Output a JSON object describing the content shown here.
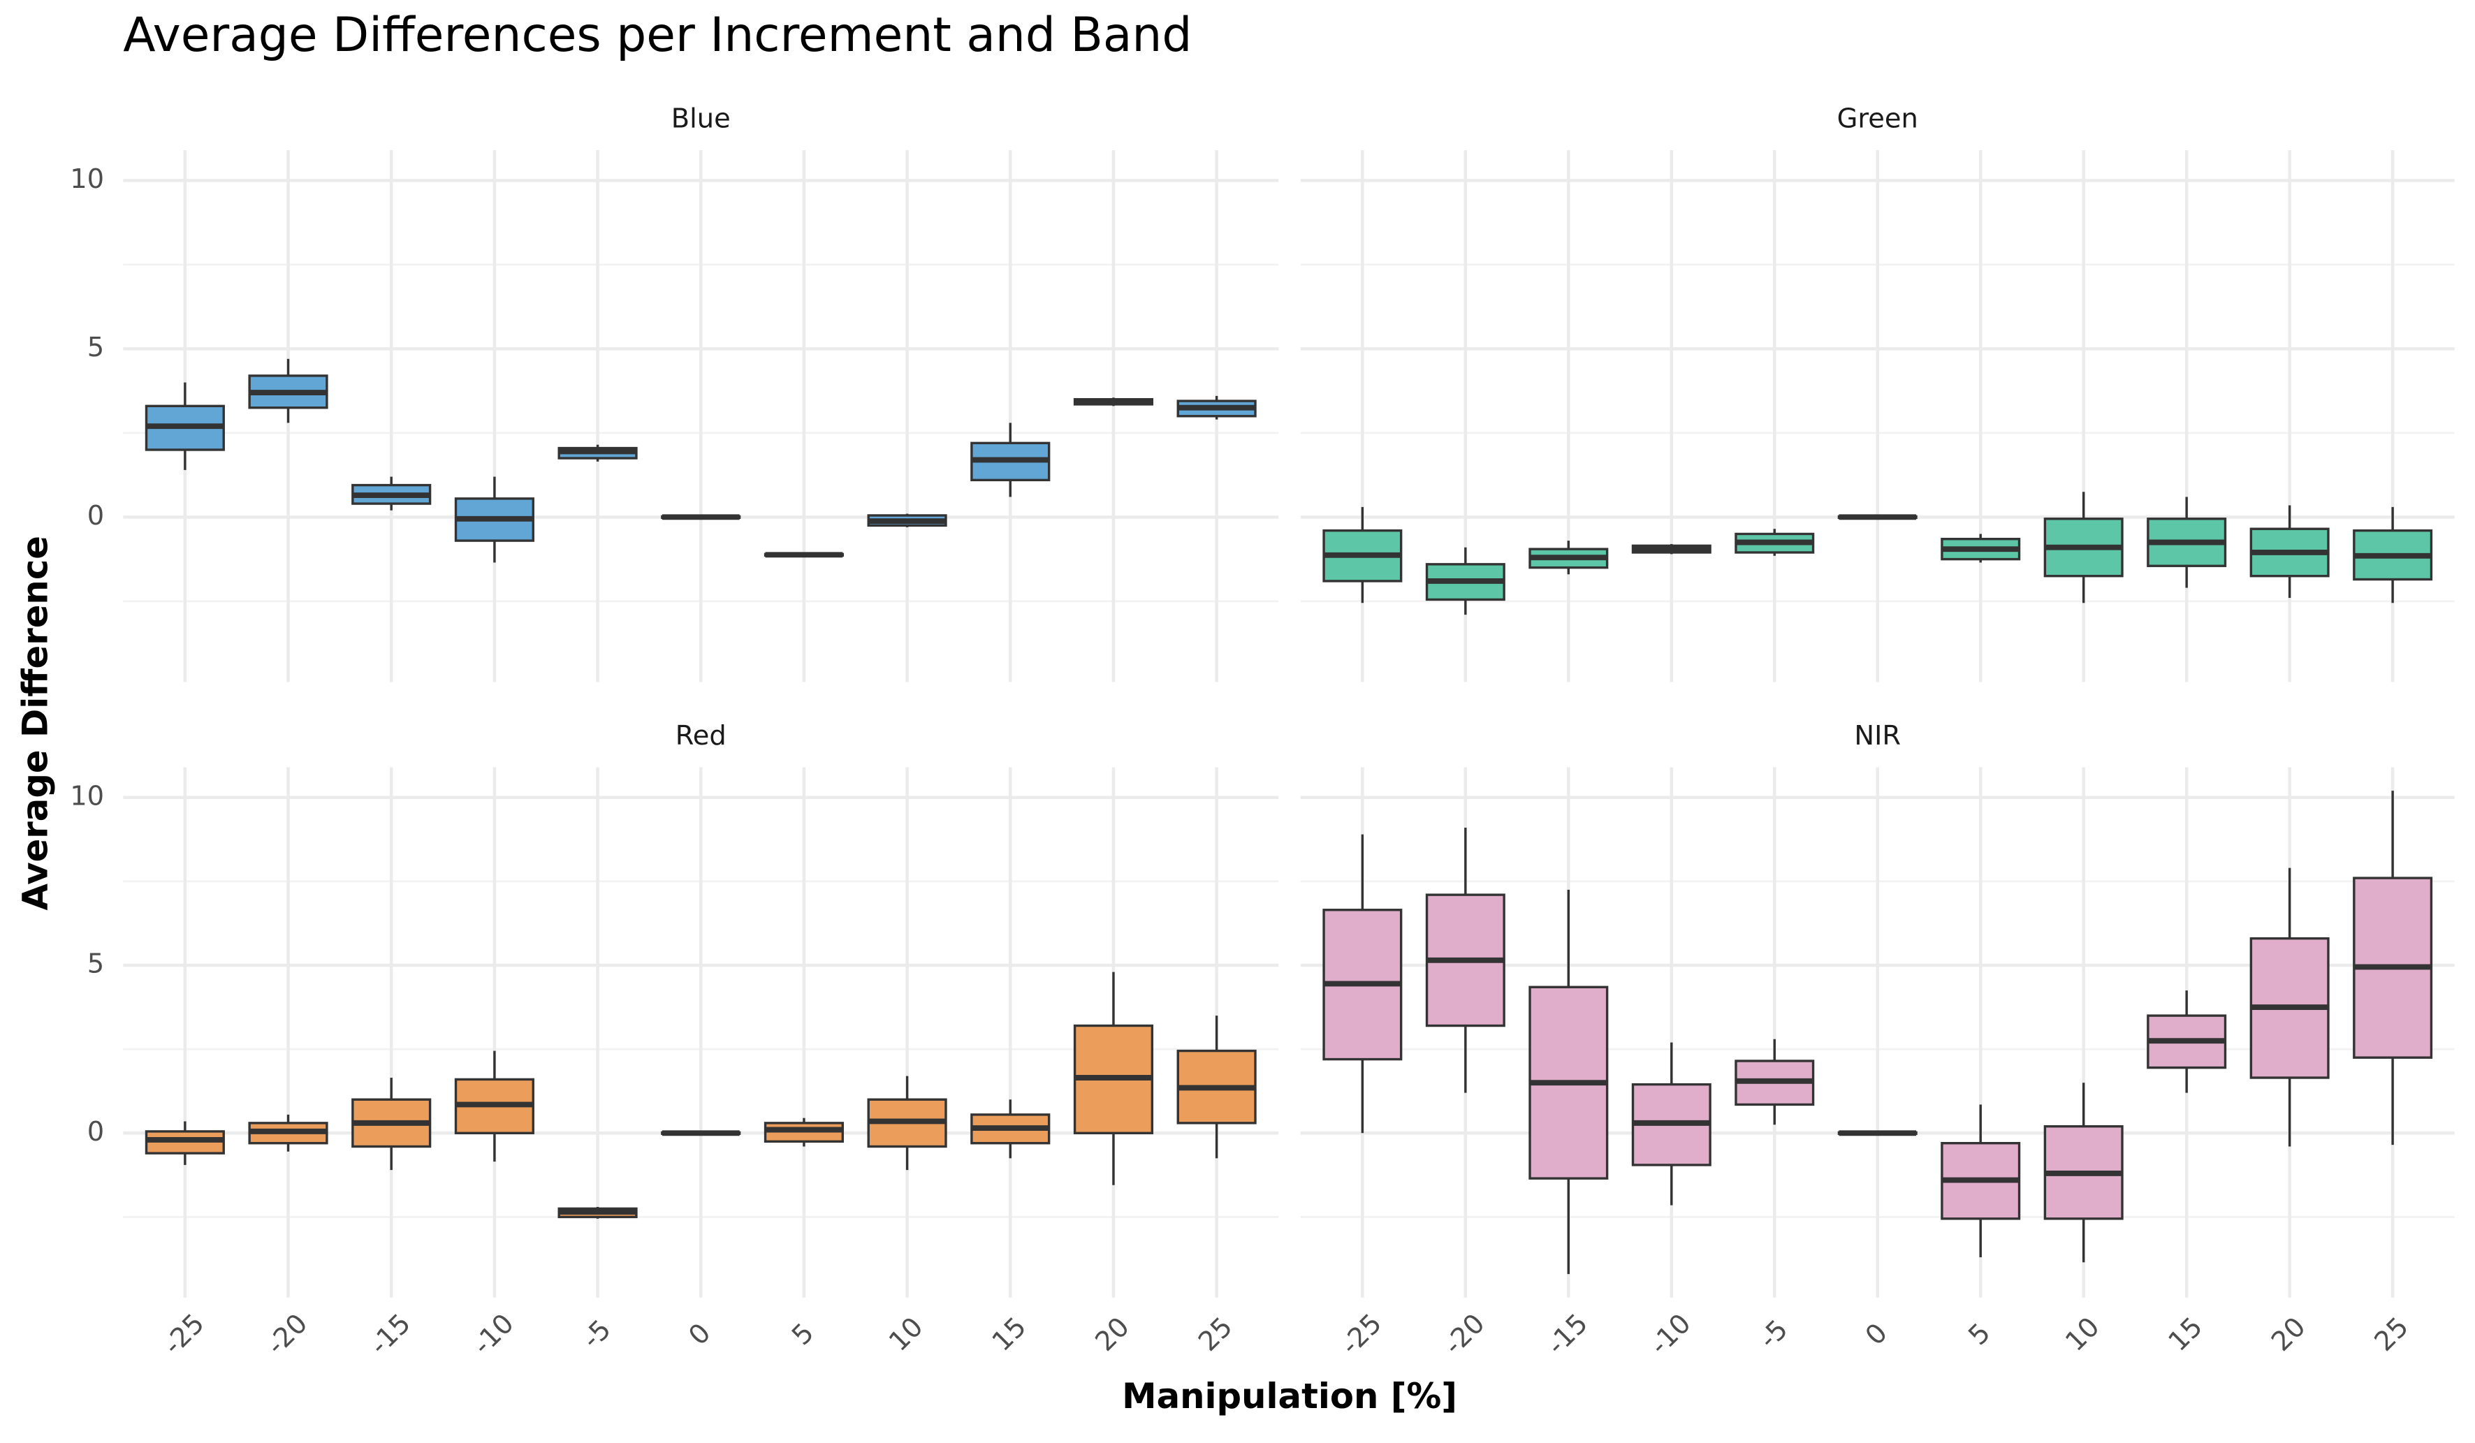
{
  "title": "Average Differences per Increment and Band",
  "x_label": "Manipulation [%]",
  "y_label": "Average Difference",
  "chart_data": [
    {
      "type": "box",
      "title": "Blue",
      "color": "#62a6d6",
      "categories": [
        -25,
        -20,
        -15,
        -10,
        -5,
        0,
        5,
        10,
        15,
        20,
        25
      ],
      "boxes": [
        {
          "min": 1.4,
          "q1": 2.0,
          "median": 2.7,
          "q3": 3.3,
          "max": 4.0
        },
        {
          "min": 2.8,
          "q1": 3.25,
          "median": 3.7,
          "q3": 4.2,
          "max": 4.7
        },
        {
          "min": 0.2,
          "q1": 0.4,
          "median": 0.65,
          "q3": 0.95,
          "max": 1.2
        },
        {
          "min": -1.35,
          "q1": -0.7,
          "median": -0.05,
          "q3": 0.55,
          "max": 1.2
        },
        {
          "min": 1.65,
          "q1": 1.75,
          "median": 1.95,
          "q3": 2.05,
          "max": 2.15
        },
        {
          "min": -0.03,
          "q1": -0.02,
          "median": 0,
          "q3": 0.02,
          "max": 0.03
        },
        {
          "min": -1.15,
          "q1": -1.14,
          "median": -1.12,
          "q3": -1.1,
          "max": -1.08
        },
        {
          "min": -0.3,
          "q1": -0.25,
          "median": -0.12,
          "q3": 0.05,
          "max": 0.1
        },
        {
          "min": 0.6,
          "q1": 1.1,
          "median": 1.7,
          "q3": 2.2,
          "max": 2.8
        },
        {
          "min": 3.3,
          "q1": 3.35,
          "median": 3.45,
          "q3": 3.5,
          "max": 3.55
        },
        {
          "min": 2.9,
          "q1": 3.0,
          "median": 3.25,
          "q3": 3.45,
          "max": 3.6
        }
      ],
      "ylim": [
        -4.9,
        10.9
      ],
      "yticks": [
        0,
        5,
        10
      ],
      "minor_yticks": [
        -2.5,
        2.5,
        7.5
      ],
      "grid": true,
      "show_x_labels": false,
      "show_y_labels": true
    },
    {
      "type": "box",
      "title": "Green",
      "color": "#5cc6a6",
      "categories": [
        -25,
        -20,
        -15,
        -10,
        -5,
        0,
        5,
        10,
        15,
        20,
        25
      ],
      "boxes": [
        {
          "min": -2.55,
          "q1": -1.9,
          "median": -1.13,
          "q3": -0.4,
          "max": 0.3
        },
        {
          "min": -2.9,
          "q1": -2.45,
          "median": -1.9,
          "q3": -1.4,
          "max": -0.9
        },
        {
          "min": -1.7,
          "q1": -1.5,
          "median": -1.2,
          "q3": -0.95,
          "max": -0.7
        },
        {
          "min": -1.1,
          "q1": -1.05,
          "median": -0.95,
          "q3": -0.85,
          "max": -0.8
        },
        {
          "min": -1.15,
          "q1": -1.05,
          "median": -0.75,
          "q3": -0.5,
          "max": -0.35
        },
        {
          "min": -0.03,
          "q1": -0.02,
          "median": 0,
          "q3": 0.02,
          "max": 0.03
        },
        {
          "min": -1.35,
          "q1": -1.25,
          "median": -0.95,
          "q3": -0.65,
          "max": -0.5
        },
        {
          "min": -2.55,
          "q1": -1.75,
          "median": -0.9,
          "q3": -0.05,
          "max": 0.75
        },
        {
          "min": -2.1,
          "q1": -1.45,
          "median": -0.75,
          "q3": -0.05,
          "max": 0.6
        },
        {
          "min": -2.4,
          "q1": -1.75,
          "median": -1.05,
          "q3": -0.35,
          "max": 0.35
        },
        {
          "min": -2.55,
          "q1": -1.85,
          "median": -1.15,
          "q3": -0.4,
          "max": 0.3
        }
      ],
      "ylim": [
        -4.9,
        10.9
      ],
      "yticks": [
        0,
        5,
        10
      ],
      "minor_yticks": [
        -2.5,
        2.5,
        7.5
      ],
      "grid": true,
      "show_x_labels": false,
      "show_y_labels": false
    },
    {
      "type": "box",
      "title": "Red",
      "color": "#eb9d5c",
      "categories": [
        -25,
        -20,
        -15,
        -10,
        -5,
        0,
        5,
        10,
        15,
        20,
        25
      ],
      "boxes": [
        {
          "min": -0.95,
          "q1": -0.6,
          "median": -0.2,
          "q3": 0.05,
          "max": 0.35
        },
        {
          "min": -0.55,
          "q1": -0.3,
          "median": 0.05,
          "q3": 0.3,
          "max": 0.55
        },
        {
          "min": -1.1,
          "q1": -0.4,
          "median": 0.3,
          "q3": 1.0,
          "max": 1.65
        },
        {
          "min": -0.85,
          "q1": 0,
          "median": 0.85,
          "q3": 1.6,
          "max": 2.45
        },
        {
          "min": -2.55,
          "q1": -2.5,
          "median": -2.35,
          "q3": -2.25,
          "max": -2.2
        },
        {
          "min": -0.03,
          "q1": -0.02,
          "median": 0,
          "q3": 0.02,
          "max": 0.03
        },
        {
          "min": -0.4,
          "q1": -0.25,
          "median": 0.1,
          "q3": 0.3,
          "max": 0.45
        },
        {
          "min": -1.1,
          "q1": -0.4,
          "median": 0.35,
          "q3": 1.0,
          "max": 1.7
        },
        {
          "min": -0.75,
          "q1": -0.3,
          "median": 0.15,
          "q3": 0.55,
          "max": 1.0
        },
        {
          "min": -1.55,
          "q1": 0,
          "median": 1.65,
          "q3": 3.2,
          "max": 4.8
        },
        {
          "min": -0.75,
          "q1": 0.3,
          "median": 1.35,
          "q3": 2.45,
          "max": 3.5
        }
      ],
      "ylim": [
        -4.9,
        10.9
      ],
      "yticks": [
        0,
        5,
        10
      ],
      "minor_yticks": [
        -2.5,
        2.5,
        7.5
      ],
      "grid": true,
      "show_x_labels": true,
      "show_y_labels": true
    },
    {
      "type": "box",
      "title": "NIR",
      "color": "#e0aecb",
      "categories": [
        -25,
        -20,
        -15,
        -10,
        -5,
        0,
        5,
        10,
        15,
        20,
        25
      ],
      "boxes": [
        {
          "min": 0,
          "q1": 2.2,
          "median": 4.45,
          "q3": 6.65,
          "max": 8.9
        },
        {
          "min": 1.2,
          "q1": 3.2,
          "median": 5.15,
          "q3": 7.1,
          "max": 9.1
        },
        {
          "min": -4.2,
          "q1": -1.35,
          "median": 1.5,
          "q3": 4.35,
          "max": 7.25
        },
        {
          "min": -2.15,
          "q1": -0.95,
          "median": 0.3,
          "q3": 1.45,
          "max": 2.7
        },
        {
          "min": 0.25,
          "q1": 0.85,
          "median": 1.55,
          "q3": 2.15,
          "max": 2.8
        },
        {
          "min": -0.03,
          "q1": -0.02,
          "median": 0,
          "q3": 0.02,
          "max": 0.03
        },
        {
          "min": -3.7,
          "q1": -2.55,
          "median": -1.4,
          "q3": -0.3,
          "max": 0.85
        },
        {
          "min": -3.85,
          "q1": -2.55,
          "median": -1.2,
          "q3": 0.2,
          "max": 1.5
        },
        {
          "min": 1.2,
          "q1": 1.95,
          "median": 2.75,
          "q3": 3.5,
          "max": 4.25
        },
        {
          "min": -0.4,
          "q1": 1.65,
          "median": 3.75,
          "q3": 5.8,
          "max": 7.9
        },
        {
          "min": -0.35,
          "q1": 2.25,
          "median": 4.95,
          "q3": 7.6,
          "max": 10.2
        }
      ],
      "ylim": [
        -4.9,
        10.9
      ],
      "yticks": [
        0,
        5,
        10
      ],
      "minor_yticks": [
        -2.5,
        2.5,
        7.5
      ],
      "grid": true,
      "show_x_labels": true,
      "show_y_labels": false
    }
  ]
}
